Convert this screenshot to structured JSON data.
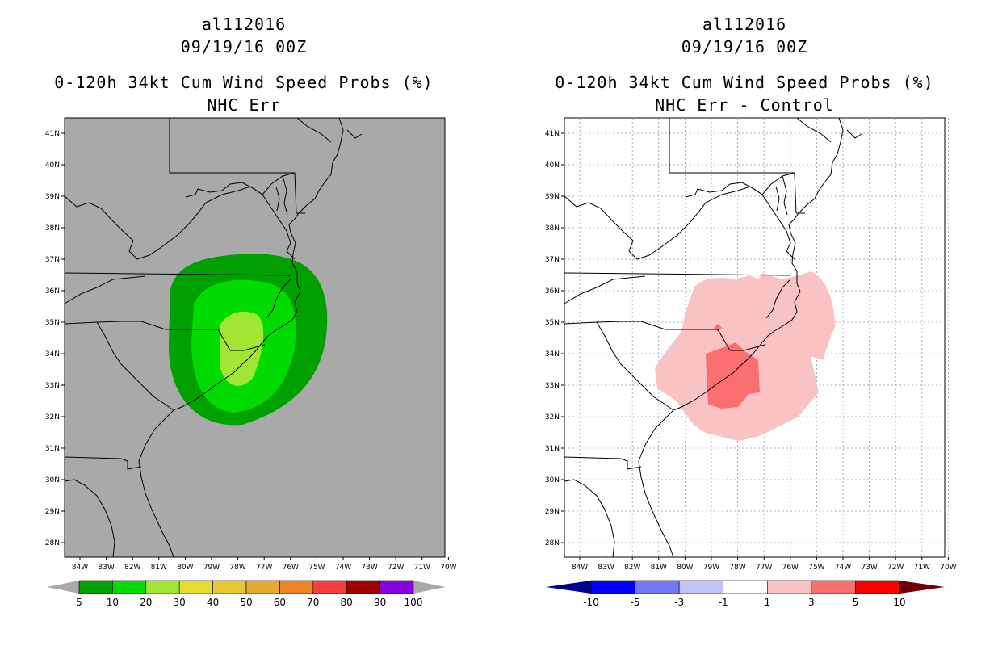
{
  "left_panel": {
    "storm_id": "al112016",
    "datetime": "09/19/16 00Z",
    "title": "0-120h 34kt Cum Wind Speed Probs (%)",
    "subtitle": "NHC Err",
    "colorbar_labels": [
      "5",
      "10",
      "20",
      "30",
      "40",
      "50",
      "60",
      "70",
      "80",
      "90",
      "100"
    ],
    "colorbar_colors": [
      "#00a000",
      "#00dc00",
      "#a0e632",
      "#e6dc32",
      "#e6c832",
      "#e6aa32",
      "#f08228",
      "#fa3c3c",
      "#a00000",
      "#8c00dc"
    ]
  },
  "right_panel": {
    "storm_id": "al112016",
    "datetime": "09/19/16 00Z",
    "title": "0-120h 34kt Cum Wind Speed Probs (%)",
    "subtitle": "NHC Err - Control",
    "colorbar_labels": [
      "-10",
      "-5",
      "-3",
      "-1",
      "1",
      "3",
      "5",
      "10"
    ],
    "colorbar_colors": [
      "#0000fa",
      "#7777f5",
      "#c3c3fa",
      "#ffffff",
      "#fac3c3",
      "#fa7070",
      "#fa0000"
    ]
  },
  "axes": {
    "lat_labels": [
      "41N",
      "40N",
      "39N",
      "38N",
      "37N",
      "36N",
      "35N",
      "34N",
      "33N",
      "32N",
      "31N",
      "30N",
      "29N",
      "28N"
    ],
    "lon_labels": [
      "84W",
      "83W",
      "82W",
      "81W",
      "80W",
      "79W",
      "78W",
      "77W",
      "76W",
      "75W",
      "74W",
      "73W",
      "72W",
      "71W",
      "70W"
    ]
  },
  "colors": {
    "land_sea_bg": "#a9a9a9",
    "prob_5": "#00a000",
    "prob_10": "#00dc00",
    "prob_20": "#a0e632",
    "diff_1": "#fac3c3",
    "diff_3": "#fa7070"
  }
}
